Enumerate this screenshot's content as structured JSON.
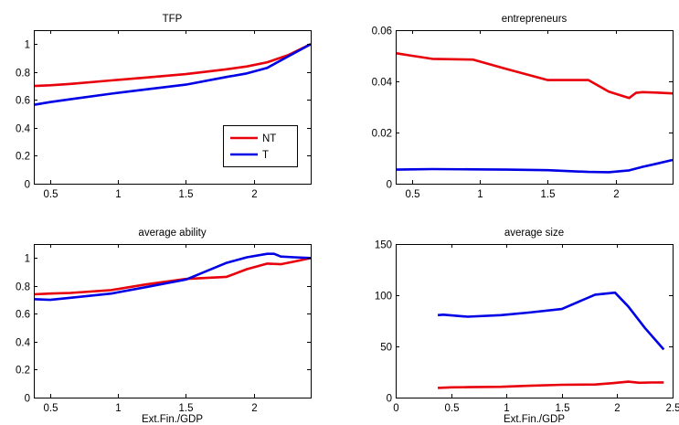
{
  "colors": {
    "NT": "#e8000b",
    "T": "#0000e6"
  },
  "chart_data": [
    {
      "type": "line",
      "title": "TFP",
      "xlabel": "",
      "xlim": [
        0.38,
        2.42
      ],
      "ylim": [
        0,
        1.1
      ],
      "xticks": [
        0.5,
        1,
        1.5,
        2
      ],
      "xtick_labels": [
        "0.5",
        "1",
        "1.5",
        "2"
      ],
      "yticks": [
        0,
        0.2,
        0.4,
        0.6,
        0.8,
        1
      ],
      "ytick_labels": [
        "0",
        "0.2",
        "0.4",
        "0.6",
        "0.8",
        "1"
      ],
      "legend": {
        "position": "bottom-right",
        "entries": [
          "NT",
          "T"
        ]
      },
      "series": [
        {
          "name": "NT",
          "x": [
            0.38,
            0.5,
            0.65,
            0.95,
            1.2,
            1.5,
            1.8,
            1.95,
            2.1,
            2.25,
            2.42
          ],
          "y": [
            0.7,
            0.705,
            0.715,
            0.74,
            0.76,
            0.785,
            0.82,
            0.84,
            0.87,
            0.92,
            1.0
          ]
        },
        {
          "name": "T",
          "x": [
            0.38,
            0.5,
            0.65,
            0.95,
            1.2,
            1.5,
            1.8,
            1.95,
            2.1,
            2.25,
            2.42
          ],
          "y": [
            0.565,
            0.585,
            0.605,
            0.645,
            0.675,
            0.71,
            0.765,
            0.79,
            0.83,
            0.91,
            1.0
          ]
        }
      ]
    },
    {
      "type": "line",
      "title": "entrepreneurs",
      "xlabel": "",
      "xlim": [
        0.38,
        2.42
      ],
      "ylim": [
        0,
        0.06
      ],
      "xticks": [
        0.5,
        1,
        1.5,
        2
      ],
      "xtick_labels": [
        "0.5",
        "1",
        "1.5",
        "2"
      ],
      "yticks": [
        0,
        0.02,
        0.04,
        0.06
      ],
      "ytick_labels": [
        "0",
        "0.02",
        "0.04",
        "0.06"
      ],
      "series": [
        {
          "name": "NT",
          "x": [
            0.38,
            0.5,
            0.65,
            0.95,
            1.2,
            1.5,
            1.65,
            1.8,
            1.95,
            2.1,
            2.15,
            2.2,
            2.3,
            2.42
          ],
          "y": [
            0.051,
            0.05,
            0.0488,
            0.0485,
            0.0448,
            0.0405,
            0.0405,
            0.0405,
            0.036,
            0.0335,
            0.0355,
            0.0358,
            0.0356,
            0.0353
          ]
        },
        {
          "name": "T",
          "x": [
            0.38,
            0.5,
            0.65,
            0.95,
            1.2,
            1.5,
            1.8,
            1.95,
            2.1,
            2.2,
            2.3,
            2.42
          ],
          "y": [
            0.0055,
            0.0056,
            0.0057,
            0.0056,
            0.0055,
            0.0053,
            0.0046,
            0.0045,
            0.0052,
            0.0066,
            0.0078,
            0.0093
          ]
        }
      ]
    },
    {
      "type": "line",
      "title": "average ability",
      "xlabel": "Ext.Fin./GDP",
      "xlim": [
        0.38,
        2.42
      ],
      "ylim": [
        0,
        1.1
      ],
      "xticks": [
        0.5,
        1,
        1.5,
        2
      ],
      "xtick_labels": [
        "0.5",
        "1",
        "1.5",
        "2"
      ],
      "yticks": [
        0,
        0.2,
        0.4,
        0.6,
        0.8,
        1
      ],
      "ytick_labels": [
        "0",
        "0.2",
        "0.4",
        "0.6",
        "0.8",
        "1"
      ],
      "series": [
        {
          "name": "NT",
          "x": [
            0.38,
            0.5,
            0.65,
            0.95,
            1.2,
            1.5,
            1.8,
            1.95,
            2.1,
            2.2,
            2.3,
            2.42
          ],
          "y": [
            0.74,
            0.745,
            0.75,
            0.77,
            0.81,
            0.85,
            0.865,
            0.92,
            0.96,
            0.955,
            0.975,
            1.0
          ]
        },
        {
          "name": "T",
          "x": [
            0.38,
            0.5,
            0.65,
            0.95,
            1.2,
            1.5,
            1.8,
            1.95,
            2.1,
            2.15,
            2.2,
            2.3,
            2.42
          ],
          "y": [
            0.705,
            0.7,
            0.715,
            0.745,
            0.79,
            0.845,
            0.965,
            1.005,
            1.03,
            1.03,
            1.01,
            1.005,
            1.0
          ]
        }
      ]
    },
    {
      "type": "line",
      "title": "average size",
      "xlabel": "Ext.Fin./GDP",
      "xlim": [
        0,
        2.5
      ],
      "ylim": [
        0,
        150
      ],
      "xticks": [
        0,
        0.5,
        1,
        1.5,
        2,
        2.5
      ],
      "xtick_labels": [
        "0",
        "0.5",
        "1",
        "1.5",
        "2",
        "2.5"
      ],
      "yticks": [
        0,
        50,
        100,
        150
      ],
      "ytick_labels": [
        "0",
        "50",
        "100",
        "150"
      ],
      "series": [
        {
          "name": "NT",
          "x": [
            0.38,
            0.5,
            0.65,
            0.95,
            1.2,
            1.5,
            1.8,
            1.95,
            2.1,
            2.2,
            2.3,
            2.42
          ],
          "y": [
            9.5,
            10,
            10.2,
            10.5,
            11.5,
            12.5,
            12.8,
            14,
            15.5,
            14.5,
            14.7,
            14.8
          ]
        },
        {
          "name": "T",
          "x": [
            0.38,
            0.43,
            0.65,
            0.95,
            1.2,
            1.5,
            1.8,
            1.98,
            2.1,
            2.25,
            2.42
          ],
          "y": [
            80.5,
            81,
            79,
            80.5,
            83,
            86.5,
            100.5,
            102.5,
            89,
            68,
            47
          ]
        }
      ]
    }
  ]
}
